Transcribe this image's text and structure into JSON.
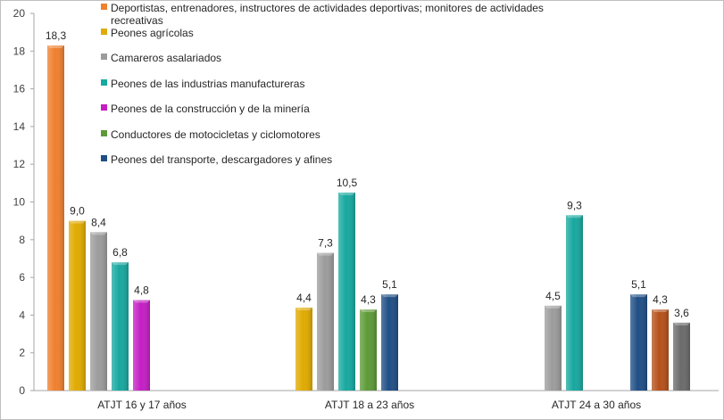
{
  "chart_data": {
    "type": "bar",
    "ylim": [
      0,
      20
    ],
    "yticks": [
      0,
      2,
      4,
      6,
      8,
      10,
      12,
      14,
      16,
      18,
      20
    ],
    "grid": false,
    "legend_position": "top-center",
    "categories": [
      "ATJT  16 y 17 años",
      "ATJT  18 a 23 años",
      "ATJT  24 a 30 años"
    ],
    "series": [
      {
        "name": "Deportistas, entrenadores, instructores de actividades deportivas; monitores de actividades recreativas",
        "color": "#f07f2e",
        "values": [
          18.3,
          null,
          null
        ]
      },
      {
        "name": "Peones agrícolas",
        "color": "#e0aa00",
        "values": [
          9.0,
          4.4,
          null
        ]
      },
      {
        "name": "Camareros asalariados",
        "color": "#9c9c9c",
        "values": [
          8.4,
          7.3,
          4.5
        ]
      },
      {
        "name": "Peones de las industrias manufactureras",
        "color": "#17a89f",
        "values": [
          6.8,
          10.5,
          9.3
        ]
      },
      {
        "name": "Peones de la construcción y de la minería",
        "color": "#c41ec4",
        "values": [
          4.8,
          null,
          null
        ]
      },
      {
        "name": "Conductores de motocicletas y ciclomotores",
        "color": "#5d9a37",
        "values": [
          null,
          4.3,
          null
        ]
      },
      {
        "name": "Peones del transporte, descargadores y afines",
        "color": "#1f4e85",
        "values": [
          null,
          5.1,
          5.1
        ]
      }
    ],
    "extra_bars": [
      {
        "category_index": 2,
        "color": "#b5501a",
        "value": 4.3,
        "label": "4,3"
      },
      {
        "category_index": 2,
        "color": "#6b6b6b",
        "value": 3.6,
        "label": "3,6"
      }
    ],
    "value_labels": [
      [
        "18,3",
        null,
        null
      ],
      [
        "9,0",
        "4,4",
        null
      ],
      [
        "8,4",
        "7,3",
        "4,5"
      ],
      [
        "6,8",
        "10,5",
        "9,3"
      ],
      [
        "4,8",
        null,
        null
      ],
      [
        null,
        "4,3",
        null
      ],
      [
        null,
        "5,1",
        "5,1"
      ]
    ],
    "legend": [
      {
        "lines": [
          "Deportistas, entrenadores, instructores de actividades deportivas; monitores de actividades",
          "recreativas"
        ],
        "color": "#f07f2e"
      },
      {
        "lines": [
          "Peones agrícolas"
        ],
        "color": "#e0aa00"
      },
      {
        "lines": [
          "Camareros asalariados"
        ],
        "color": "#9c9c9c"
      },
      {
        "lines": [
          "Peones de las industrias manufactureras"
        ],
        "color": "#17a89f"
      },
      {
        "lines": [
          "Peones de la construcción y de la minería"
        ],
        "color": "#c41ec4"
      },
      {
        "lines": [
          "Conductores de motocicletas y ciclomotores"
        ],
        "color": "#5d9a37"
      },
      {
        "lines": [
          "Peones del transporte, descargadores y afines"
        ],
        "color": "#1f4e85"
      }
    ]
  }
}
